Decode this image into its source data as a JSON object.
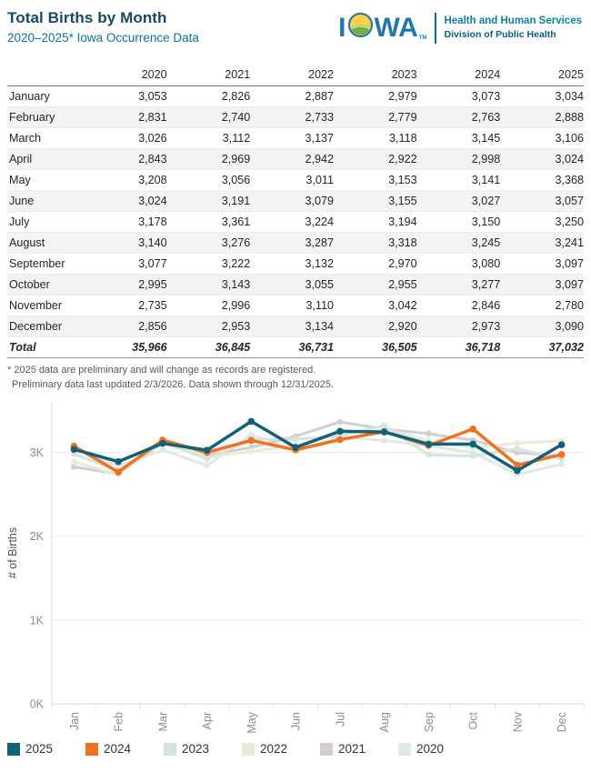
{
  "header": {
    "title": "Total Births by Month",
    "subtitle": "2020–2025* Iowa Occurrence Data",
    "logo": {
      "wordmark_i": "I",
      "wordmark_wa": "WA",
      "tm": "TM",
      "org_line1": "Health and Human Services",
      "org_line2": "Division of Public Health",
      "wordmark_color": "#2478a9"
    }
  },
  "table": {
    "columns": [
      "",
      "2020",
      "2021",
      "2022",
      "2023",
      "2024",
      "2025"
    ],
    "rows": [
      {
        "label": "January",
        "values": [
          "3,053",
          "2,826",
          "2,887",
          "2,979",
          "3,073",
          "3,034"
        ]
      },
      {
        "label": "February",
        "values": [
          "2,831",
          "2,740",
          "2,733",
          "2,779",
          "2,763",
          "2,888"
        ]
      },
      {
        "label": "March",
        "values": [
          "3,026",
          "3,112",
          "3,137",
          "3,118",
          "3,145",
          "3,106"
        ]
      },
      {
        "label": "April",
        "values": [
          "2,843",
          "2,969",
          "2,942",
          "2,922",
          "2,998",
          "3,024"
        ]
      },
      {
        "label": "May",
        "values": [
          "3,208",
          "3,056",
          "3,011",
          "3,153",
          "3,141",
          "3,368"
        ]
      },
      {
        "label": "June",
        "values": [
          "3,024",
          "3,191",
          "3,079",
          "3,155",
          "3,027",
          "3,057"
        ]
      },
      {
        "label": "July",
        "values": [
          "3,178",
          "3,361",
          "3,224",
          "3,194",
          "3,150",
          "3,250"
        ]
      },
      {
        "label": "August",
        "values": [
          "3,140",
          "3,276",
          "3,287",
          "3,318",
          "3,245",
          "3,241"
        ]
      },
      {
        "label": "September",
        "values": [
          "3,077",
          "3,222",
          "3,132",
          "2,970",
          "3,080",
          "3,097"
        ]
      },
      {
        "label": "October",
        "values": [
          "2,995",
          "3,143",
          "3,055",
          "2,955",
          "3,277",
          "3,097"
        ]
      },
      {
        "label": "November",
        "values": [
          "2,735",
          "2,996",
          "3,110",
          "3,042",
          "2,846",
          "2,780"
        ]
      },
      {
        "label": "December",
        "values": [
          "2,856",
          "2,953",
          "3,134",
          "2,920",
          "2,973",
          "3,090"
        ]
      }
    ],
    "total": {
      "label": "Total",
      "values": [
        "35,966",
        "36,845",
        "36,731",
        "36,505",
        "36,718",
        "37,032"
      ]
    }
  },
  "footnotes": [
    "* 2025 data are preliminary and will change as records are registered.",
    "Preliminary data last updated 2/3/2026. Data shown through 12/31/2025."
  ],
  "chart_data": {
    "type": "line",
    "title": "",
    "categories": [
      "Jan",
      "Feb",
      "Mar",
      "Apr",
      "May",
      "Jun",
      "Jul",
      "Aug",
      "Sep",
      "Oct",
      "Nov",
      "Dec"
    ],
    "series": [
      {
        "name": "2025",
        "color": "#136079",
        "emphasis": true,
        "values": [
          3034,
          2888,
          3106,
          3024,
          3368,
          3057,
          3250,
          3241,
          3097,
          3097,
          2780,
          3090
        ]
      },
      {
        "name": "2024",
        "color": "#f07220",
        "emphasis": true,
        "values": [
          3073,
          2763,
          3145,
          2998,
          3141,
          3027,
          3150,
          3245,
          3080,
          3277,
          2846,
          2973
        ]
      },
      {
        "name": "2023",
        "color": "#d6e4e0",
        "emphasis": false,
        "values": [
          2979,
          2779,
          3118,
          2922,
          3153,
          3155,
          3194,
          3318,
          2970,
          2955,
          3042,
          2920
        ]
      },
      {
        "name": "2022",
        "color": "#e9ebd6",
        "emphasis": false,
        "values": [
          2887,
          2733,
          3137,
          2942,
          3011,
          3079,
          3224,
          3287,
          3132,
          3055,
          3110,
          3134
        ]
      },
      {
        "name": "2021",
        "color": "#d5cdd2",
        "emphasis": false,
        "values": [
          2826,
          2740,
          3112,
          2969,
          3056,
          3191,
          3361,
          3276,
          3222,
          3143,
          2996,
          2953
        ]
      },
      {
        "name": "2020",
        "color": "#dfe9e7",
        "emphasis": false,
        "values": [
          3053,
          2831,
          3026,
          2843,
          3208,
          3024,
          3178,
          3140,
          3077,
          2995,
          2735,
          2856
        ]
      }
    ],
    "xlabel": "",
    "ylabel": "# of Births",
    "ylim": [
      0,
      3600
    ],
    "yticks": [
      {
        "label": "0K",
        "value": 0
      },
      {
        "label": "1K",
        "value": 1000
      },
      {
        "label": "2K",
        "value": 2000
      },
      {
        "label": "3K",
        "value": 3000
      }
    ],
    "grid": true,
    "legend_position": "bottom",
    "colors": {
      "grid": "#ececec",
      "axis": "#d9d9d9",
      "tick_text": "#8c8c8c",
      "axis_title_text": "#4e4e4e",
      "legend_text": "#333333"
    }
  }
}
